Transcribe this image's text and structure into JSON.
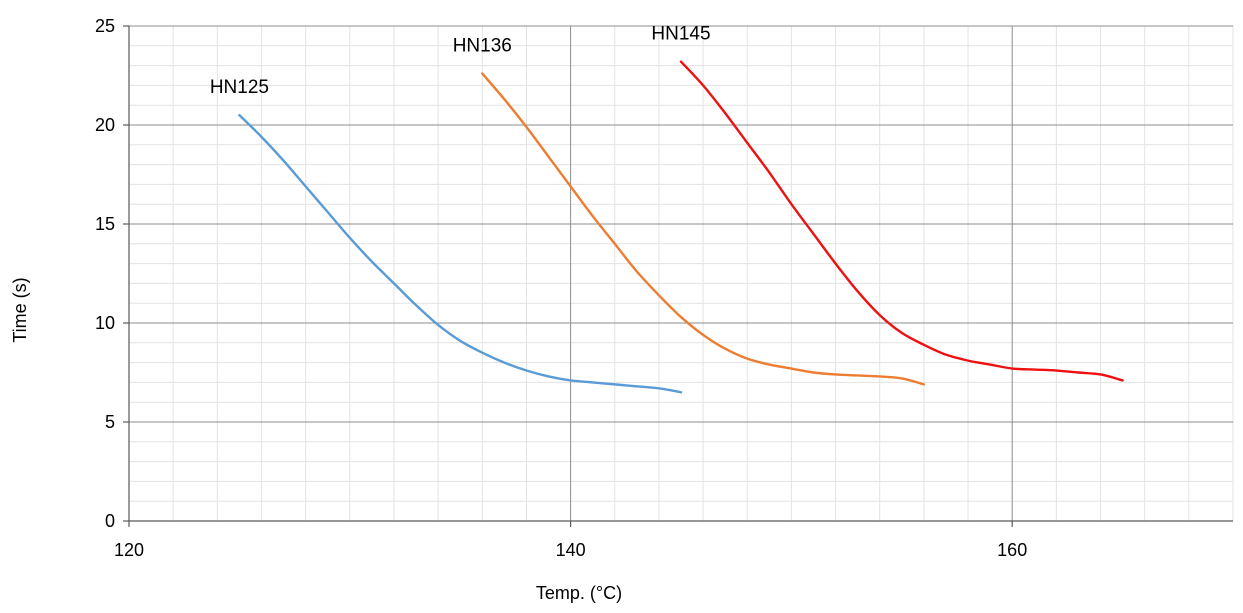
{
  "chart_data": {
    "type": "line",
    "xlabel": "Temp. (°C)",
    "ylabel": "Time (s)",
    "xlim": [
      120,
      170
    ],
    "ylim": [
      0,
      25
    ],
    "x_ticks": [
      120,
      140,
      160
    ],
    "y_ticks": [
      0,
      5,
      10,
      15,
      20,
      25
    ],
    "x_minor_step": 2,
    "y_minor_step": 1,
    "grid": true,
    "series": [
      {
        "name": "HN125",
        "color": "#5b9bd5",
        "x": [
          125,
          126,
          127,
          128,
          129,
          130,
          131,
          132,
          133,
          134,
          135,
          136,
          137,
          138,
          139,
          140,
          141,
          142,
          143,
          144,
          145
        ],
        "y": [
          20.5,
          19.4,
          18.2,
          16.9,
          15.6,
          14.3,
          13.1,
          12.0,
          10.9,
          9.9,
          9.1,
          8.5,
          8.0,
          7.6,
          7.3,
          7.1,
          7.0,
          6.9,
          6.8,
          6.7,
          6.5
        ]
      },
      {
        "name": "HN136",
        "color": "#ed7d31",
        "x": [
          136,
          137,
          138,
          139,
          140,
          141,
          142,
          143,
          144,
          145,
          146,
          147,
          148,
          149,
          150,
          151,
          152,
          153,
          154,
          155,
          156
        ],
        "y": [
          22.6,
          21.3,
          19.9,
          18.4,
          16.9,
          15.4,
          14.0,
          12.6,
          11.4,
          10.3,
          9.4,
          8.7,
          8.2,
          7.9,
          7.7,
          7.5,
          7.4,
          7.35,
          7.3,
          7.2,
          6.9
        ]
      },
      {
        "name": "HN145",
        "color": "#ee1111",
        "x": [
          145,
          146,
          147,
          148,
          149,
          150,
          151,
          152,
          153,
          154,
          155,
          156,
          157,
          158,
          159,
          160,
          161,
          162,
          163,
          164,
          165
        ],
        "y": [
          23.2,
          22.0,
          20.6,
          19.1,
          17.6,
          16.0,
          14.5,
          13.0,
          11.6,
          10.4,
          9.5,
          8.9,
          8.4,
          8.1,
          7.9,
          7.7,
          7.65,
          7.6,
          7.5,
          7.4,
          7.1
        ]
      }
    ]
  }
}
